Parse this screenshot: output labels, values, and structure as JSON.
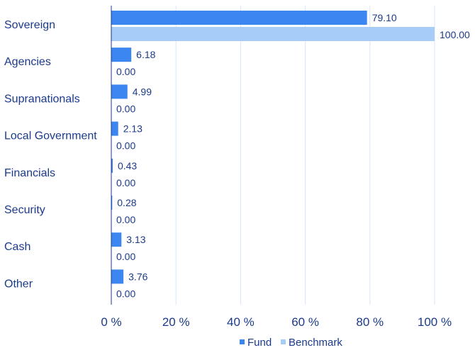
{
  "chart_data": {
    "type": "bar",
    "orientation": "horizontal",
    "categories": [
      "Sovereign",
      "Agencies",
      "Supranationals",
      "Local Government",
      "Financials",
      "Security",
      "Cash",
      "Other"
    ],
    "series": [
      {
        "name": "Fund",
        "color": "#3b86f0",
        "values": [
          79.1,
          6.18,
          4.99,
          2.13,
          0.43,
          0.28,
          3.13,
          3.76
        ],
        "value_labels": [
          "79.10",
          "6.18",
          "4.99",
          "2.13",
          "0.43",
          "0.28",
          "3.13",
          "3.76"
        ]
      },
      {
        "name": "Benchmark",
        "color": "#a6ccf7",
        "values": [
          100.0,
          0.0,
          0.0,
          0.0,
          0.0,
          0.0,
          0.0,
          0.0
        ],
        "value_labels": [
          "100.00",
          "0.00",
          "0.00",
          "0.00",
          "0.00",
          "0.00",
          "0.00",
          "0.00"
        ]
      }
    ],
    "xlim": [
      0,
      100
    ],
    "x_ticks": [
      0,
      20,
      40,
      60,
      80,
      100
    ],
    "x_tick_labels": [
      "0 %",
      "20 %",
      "40 %",
      "60 %",
      "80 %",
      "100 %"
    ],
    "grid": true,
    "legend": "bottom-center",
    "title": "",
    "xlabel": "",
    "ylabel": ""
  }
}
